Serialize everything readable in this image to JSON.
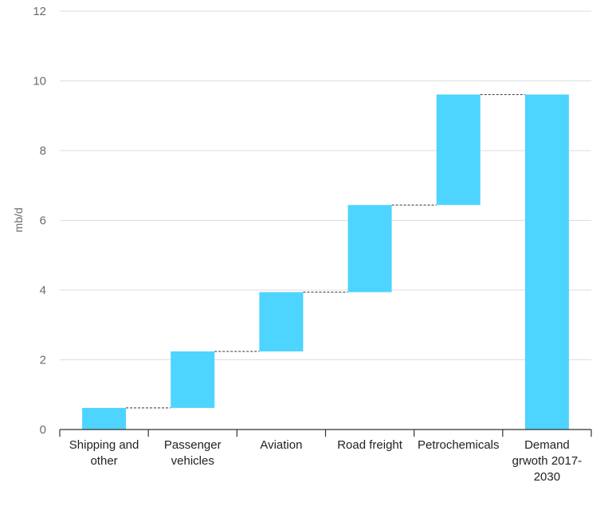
{
  "chart_data": {
    "type": "bar",
    "subtype": "waterfall",
    "ylabel": "mb/d",
    "xlabel": "",
    "ylim": [
      0,
      12
    ],
    "yticks": [
      0,
      2,
      4,
      6,
      8,
      10,
      12
    ],
    "grid": true,
    "bar_color": "#4dd4ff",
    "categories": [
      [
        "Shipping and",
        "other"
      ],
      [
        "Passenger",
        "vehicles"
      ],
      [
        "Aviation"
      ],
      [
        "Road freight"
      ],
      [
        "Petrochemicals"
      ],
      [
        "Demand",
        "grwoth 2017-",
        "2030"
      ]
    ],
    "values": [
      0.62,
      1.62,
      1.7,
      2.5,
      3.17,
      9.61
    ],
    "is_total": [
      false,
      false,
      false,
      false,
      false,
      true
    ]
  }
}
